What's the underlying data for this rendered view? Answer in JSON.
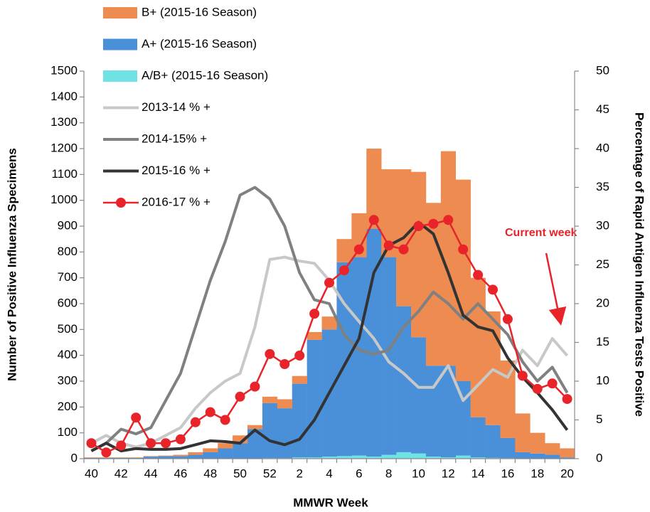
{
  "chart_data": {
    "type": "bar",
    "stacked": true,
    "x_label": "MMWR Week",
    "y_label": "Number of Positive Influenza Specimens",
    "y2_label": "Percentage of Rapid Antigen Influenza Tests Positive",
    "annotation": "Current week",
    "annotation_color": "#e8232a",
    "categories": [
      "40",
      null,
      "42",
      null,
      "44",
      null,
      "46",
      null,
      "48",
      null,
      "50",
      null,
      "52",
      null,
      "2",
      null,
      "4",
      null,
      "6",
      null,
      "8",
      null,
      "10",
      null,
      "12",
      null,
      "14",
      null,
      "16",
      null,
      "18",
      null,
      "20"
    ],
    "ylim": [
      0,
      1500
    ],
    "yticks": [
      0,
      100,
      200,
      300,
      400,
      500,
      600,
      700,
      800,
      900,
      1000,
      1100,
      1200,
      1300,
      1400,
      1500
    ],
    "y2lim": [
      0,
      50
    ],
    "y2ticks": [
      0,
      5,
      10,
      15,
      20,
      25,
      30,
      35,
      40,
      45,
      50
    ],
    "grid": false,
    "legend": "top-left",
    "series": [
      {
        "name": "A/B+ (2015-16 Season)",
        "type": "bar",
        "color": "#6fe3e3",
        "values": [
          0,
          0,
          0,
          0,
          0,
          0,
          0,
          0,
          0,
          0,
          0,
          0,
          2,
          2,
          5,
          5,
          8,
          10,
          12,
          8,
          15,
          25,
          20,
          8,
          5,
          12,
          5,
          3,
          2,
          0,
          0,
          0,
          0
        ]
      },
      {
        "name": "A+ (2015-16 Season)",
        "type": "bar",
        "color": "#4a90d9",
        "values": [
          3,
          3,
          3,
          3,
          8,
          10,
          10,
          15,
          25,
          40,
          60,
          115,
          213,
          193,
          285,
          455,
          492,
          750,
          768,
          882,
          765,
          565,
          450,
          352,
          355,
          288,
          155,
          127,
          78,
          25,
          20,
          15,
          5
        ]
      },
      {
        "name": "B+ (2015-16 Season)",
        "type": "bar",
        "color": "#ed8b50",
        "values": [
          2,
          2,
          2,
          2,
          2,
          2,
          5,
          10,
          15,
          20,
          30,
          15,
          25,
          35,
          30,
          30,
          50,
          90,
          170,
          310,
          340,
          530,
          640,
          630,
          830,
          780,
          540,
          440,
          300,
          150,
          80,
          45,
          35
        ]
      },
      {
        "name": "2013-14 % +",
        "type": "line",
        "axis": "y2",
        "color": "#c8c8c8",
        "values": [
          2,
          3,
          2,
          1.5,
          2,
          3,
          4,
          6.5,
          8.5,
          10,
          11,
          17,
          25.7,
          26,
          25.5,
          25.2,
          23,
          20,
          17.7,
          15.5,
          12.5,
          11,
          9.2,
          9.2,
          12,
          7.5,
          9.5,
          11.5,
          10.5,
          14,
          12,
          15.5,
          13.3
        ]
      },
      {
        "name": "2014-15% +",
        "type": "line",
        "axis": "y2",
        "color": "#808080",
        "values": [
          1,
          2,
          3.8,
          3.2,
          4,
          7.5,
          11,
          17,
          23,
          28,
          34,
          35,
          33.5,
          30,
          24,
          20.5,
          20,
          16,
          14,
          13.5,
          14,
          17,
          19,
          21.5,
          20,
          18,
          20,
          18,
          16,
          12.5,
          10,
          11.8,
          8.5
        ]
      },
      {
        "name": "2015-16 % +",
        "type": "line",
        "axis": "y2",
        "color": "#333333",
        "values": [
          1,
          2,
          1,
          1.3,
          1.2,
          1.2,
          1.3,
          1.8,
          2.3,
          2.2,
          2,
          3.7,
          2.3,
          1.8,
          2.5,
          5,
          8.5,
          12,
          15.5,
          24,
          27.5,
          28.5,
          30.5,
          29,
          24,
          18.5,
          17,
          16.5,
          13,
          10.5,
          8.5,
          6.3,
          3.7
        ]
      },
      {
        "name": "2016-17 % +",
        "type": "line",
        "axis": "y2",
        "markers": true,
        "color": "#e8232a",
        "values": [
          2,
          0.8,
          1.7,
          5.3,
          2,
          2,
          2.5,
          4.7,
          6,
          5,
          8,
          9.3,
          13.5,
          12.2,
          13.3,
          18.7,
          22.7,
          24.3,
          27,
          30.8,
          27.5,
          27,
          30,
          30.3,
          30.8,
          27,
          23.7,
          21.8,
          18,
          10.7,
          9,
          9.7,
          7.7
        ]
      }
    ]
  }
}
